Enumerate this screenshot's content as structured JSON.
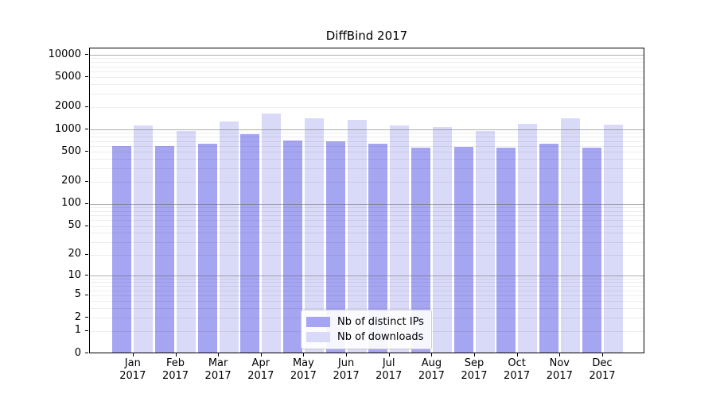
{
  "figure": {
    "title": "DiffBind 2017"
  },
  "chart_data": {
    "type": "bar",
    "title": "DiffBind 2017",
    "xlabel": "",
    "ylabel": "",
    "yscale": "log10(1+y)",
    "ylim": [
      0,
      12800
    ],
    "grid": "horizontal major+minor, drawn above bars",
    "legend_position": "lower center",
    "yticks": [
      0,
      1,
      2,
      5,
      10,
      20,
      50,
      100,
      200,
      500,
      1000,
      2000,
      5000,
      10000
    ],
    "categories": [
      [
        "Jan",
        "2017"
      ],
      [
        "Feb",
        "2017"
      ],
      [
        "Mar",
        "2017"
      ],
      [
        "Apr",
        "2017"
      ],
      [
        "May",
        "2017"
      ],
      [
        "Jun",
        "2017"
      ],
      [
        "Jul",
        "2017"
      ],
      [
        "Aug",
        "2017"
      ],
      [
        "Sep",
        "2017"
      ],
      [
        "Oct",
        "2017"
      ],
      [
        "Nov",
        "2017"
      ],
      [
        "Dec",
        "2017"
      ]
    ],
    "series": [
      {
        "name": "Nb of distinct IPs",
        "color": "#a5a5f2",
        "values": [
          590,
          590,
          635,
          840,
          700,
          680,
          620,
          550,
          575,
          560,
          635,
          560
        ]
      },
      {
        "name": "Nb of downloads",
        "color": "#d9d9f8",
        "values": [
          1090,
          920,
          1260,
          1580,
          1360,
          1300,
          1100,
          1060,
          940,
          1150,
          1390,
          1120
        ]
      }
    ]
  }
}
